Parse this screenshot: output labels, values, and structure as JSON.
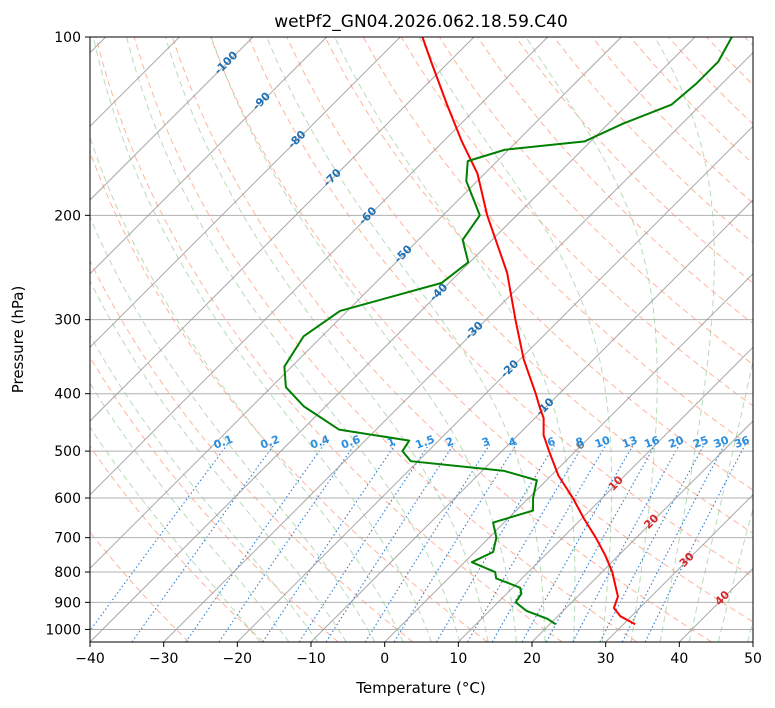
{
  "chart_data": {
    "type": "skew-t",
    "title": "wetPf2_GN04.2026.062.18.59.C40",
    "xlabel": "Temperature (°C)",
    "ylabel": "Pressure (hPa)",
    "xlim": [
      -40,
      50
    ],
    "ylim": [
      1050,
      100
    ],
    "x_ticks": [
      -40,
      -30,
      -20,
      -10,
      0,
      10,
      20,
      30,
      40,
      50
    ],
    "y_ticks": [
      100,
      200,
      300,
      400,
      500,
      600,
      700,
      800,
      900,
      1000
    ],
    "grid": true,
    "series": [
      {
        "name": "temperature",
        "color": "#ff0000",
        "points": [
          {
            "p": 980,
            "t": 31.6
          },
          {
            "p": 950,
            "t": 28.5
          },
          {
            "p": 920,
            "t": 26.5
          },
          {
            "p": 880,
            "t": 25.5
          },
          {
            "p": 850,
            "t": 24.0
          },
          {
            "p": 800,
            "t": 21.4
          },
          {
            "p": 750,
            "t": 18.2
          },
          {
            "p": 700,
            "t": 14.5
          },
          {
            "p": 650,
            "t": 10.3
          },
          {
            "p": 600,
            "t": 6.0
          },
          {
            "p": 550,
            "t": 1.0
          },
          {
            "p": 500,
            "t": -3.6
          },
          {
            "p": 470,
            "t": -6.5
          },
          {
            "p": 440,
            "t": -8.8
          },
          {
            "p": 420,
            "t": -11.0
          },
          {
            "p": 400,
            "t": -13.2
          },
          {
            "p": 350,
            "t": -19.5
          },
          {
            "p": 300,
            "t": -26.0
          },
          {
            "p": 250,
            "t": -33.5
          },
          {
            "p": 200,
            "t": -44.0
          },
          {
            "p": 170,
            "t": -51.0
          },
          {
            "p": 150,
            "t": -57.5
          },
          {
            "p": 130,
            "t": -64.5
          },
          {
            "p": 110,
            "t": -72.5
          },
          {
            "p": 100,
            "t": -77.0
          }
        ]
      },
      {
        "name": "dewpoint",
        "color": "#008000",
        "points": [
          {
            "p": 980,
            "t": 20.8
          },
          {
            "p": 960,
            "t": 19.0
          },
          {
            "p": 930,
            "t": 15.0
          },
          {
            "p": 900,
            "t": 12.4
          },
          {
            "p": 870,
            "t": 12.0
          },
          {
            "p": 850,
            "t": 11.0
          },
          {
            "p": 820,
            "t": 6.5
          },
          {
            "p": 800,
            "t": 5.5
          },
          {
            "p": 770,
            "t": 1.0
          },
          {
            "p": 740,
            "t": 2.5
          },
          {
            "p": 700,
            "t": 1.0
          },
          {
            "p": 660,
            "t": -1.5
          },
          {
            "p": 630,
            "t": 2.3
          },
          {
            "p": 600,
            "t": 0.6
          },
          {
            "p": 560,
            "t": -1.3
          },
          {
            "p": 540,
            "t": -7.0
          },
          {
            "p": 520,
            "t": -21.0
          },
          {
            "p": 500,
            "t": -23.5
          },
          {
            "p": 480,
            "t": -24.0
          },
          {
            "p": 460,
            "t": -35.0
          },
          {
            "p": 420,
            "t": -43.0
          },
          {
            "p": 390,
            "t": -48.0
          },
          {
            "p": 360,
            "t": -51.0
          },
          {
            "p": 320,
            "t": -52.5
          },
          {
            "p": 290,
            "t": -51.0
          },
          {
            "p": 260,
            "t": -41.0
          },
          {
            "p": 240,
            "t": -40.2
          },
          {
            "p": 220,
            "t": -44.0
          },
          {
            "p": 200,
            "t": -45.0
          },
          {
            "p": 175,
            "t": -51.5
          },
          {
            "p": 162,
            "t": -54.0
          },
          {
            "p": 155,
            "t": -50.5
          },
          {
            "p": 150,
            "t": -40.8
          },
          {
            "p": 140,
            "t": -38.0
          },
          {
            "p": 130,
            "t": -34.0
          },
          {
            "p": 120,
            "t": -33.5
          },
          {
            "p": 110,
            "t": -33.5
          },
          {
            "p": 100,
            "t": -35.0
          }
        ]
      }
    ],
    "isotherm_labels": [
      "-100",
      "-90",
      "-80",
      "-70",
      "-60",
      "-50",
      "-40",
      "-30",
      "-20",
      "-10",
      "0",
      "10",
      "20",
      "30",
      "40"
    ],
    "mixing_ratio_labels": [
      "0.1",
      "0.2",
      "0.4",
      "0.6",
      "1",
      "1.5",
      "2",
      "3",
      "4",
      "6",
      "8",
      "10",
      "13",
      "16",
      "20",
      "25",
      "30",
      "36"
    ],
    "colors": {
      "isotherm": "#999999",
      "dry_adiabat": "#ff9473",
      "moist_adiabat": "#8fc98f",
      "mixing_ratio": "#2e7fd1",
      "isotherm_label_cold": "#1f6fb4",
      "isotherm_label_zero": "#808080",
      "isotherm_label_warm": "#d62728",
      "mixing_label": "#2b8ee0"
    }
  }
}
